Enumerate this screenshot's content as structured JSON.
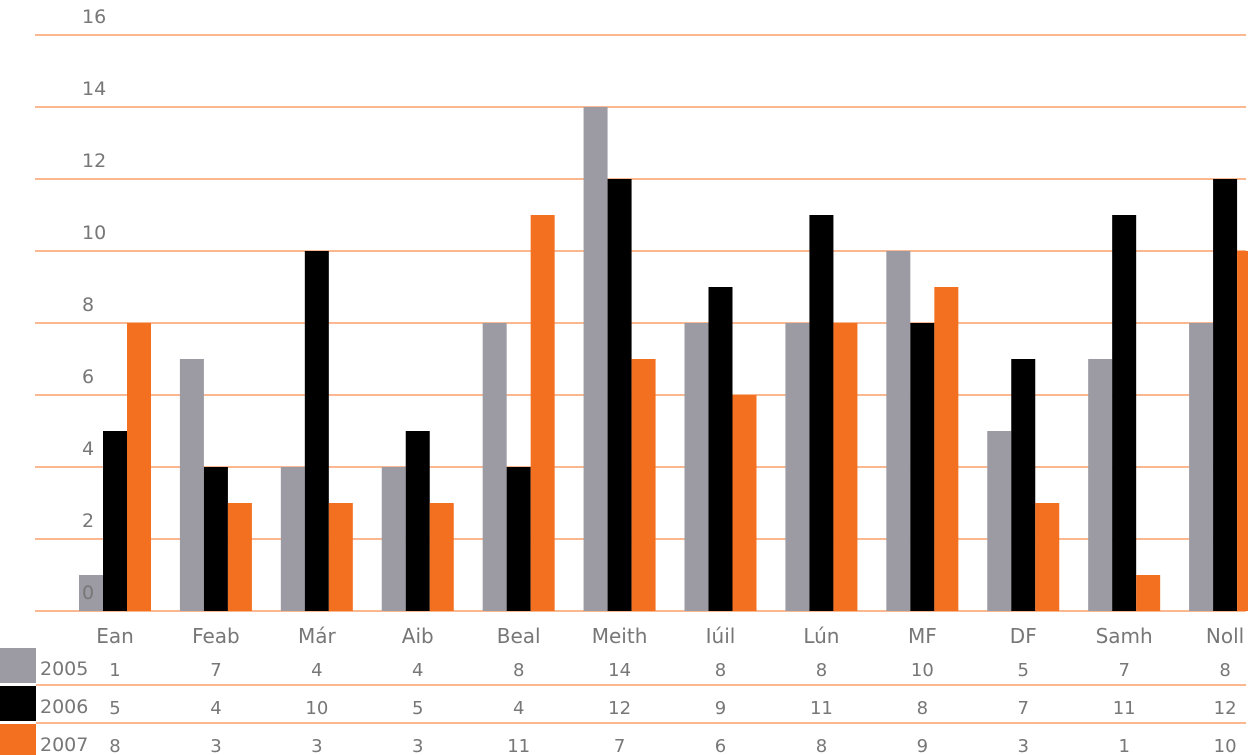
{
  "chart_data": {
    "type": "bar",
    "categories": [
      "Ean",
      "Feab",
      "Már",
      "Aib",
      "Beal",
      "Meith",
      "Iúil",
      "Lún",
      "MF",
      "DF",
      "Samh",
      "Noll"
    ],
    "series": [
      {
        "name": "2005",
        "color": "#9c9ba3",
        "values": [
          1,
          7,
          4,
          4,
          8,
          14,
          8,
          8,
          10,
          5,
          7,
          8
        ]
      },
      {
        "name": "2006",
        "color": "#000000",
        "values": [
          5,
          4,
          10,
          5,
          4,
          12,
          9,
          11,
          8,
          7,
          11,
          12
        ]
      },
      {
        "name": "2007",
        "color": "#f37021",
        "values": [
          8,
          3,
          3,
          3,
          11,
          7,
          6,
          8,
          9,
          3,
          1,
          10
        ]
      }
    ],
    "yticks": [
      0,
      2,
      4,
      6,
      8,
      10,
      12,
      14,
      16
    ],
    "ylim": [
      0,
      16
    ],
    "grid": true,
    "grid_color": "#f37021",
    "legend": "data-table-below"
  }
}
